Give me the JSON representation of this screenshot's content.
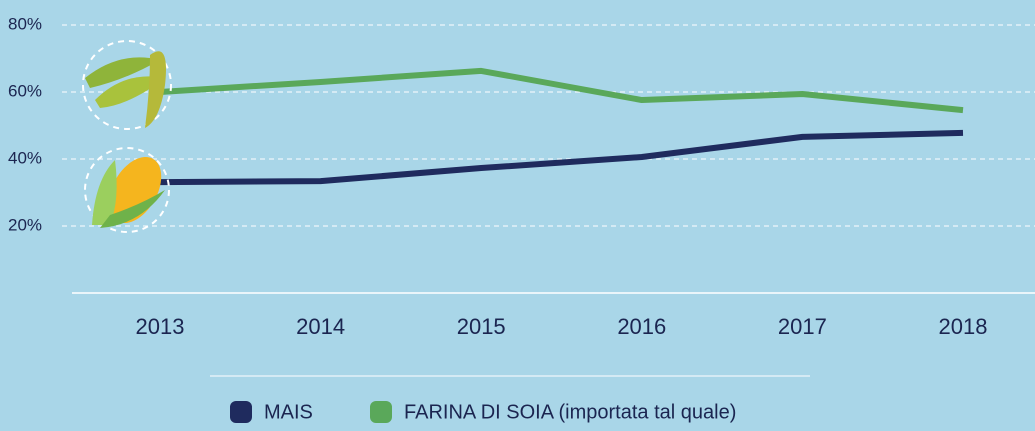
{
  "chart_data": {
    "type": "line",
    "categories": [
      "2013",
      "2014",
      "2015",
      "2016",
      "2017",
      "2018"
    ],
    "series": [
      {
        "name": "MAIS",
        "color": "#1f2b5e",
        "values": [
          33.1,
          33.4,
          37.3,
          40.6,
          46.6,
          47.8
        ]
      },
      {
        "name": "FARINA DI SOIA (importata tal quale)",
        "color": "#5aa85a",
        "values": [
          60,
          63,
          66.3,
          57.6,
          59.4,
          54.6
        ]
      }
    ],
    "ylim": [
      0,
      80
    ],
    "yticks": [
      {
        "value": 20,
        "label": "20%"
      },
      {
        "value": 40,
        "label": "40%"
      },
      {
        "value": 60,
        "label": "60%"
      },
      {
        "value": 80,
        "label": "80%"
      }
    ],
    "grid": true
  }
}
